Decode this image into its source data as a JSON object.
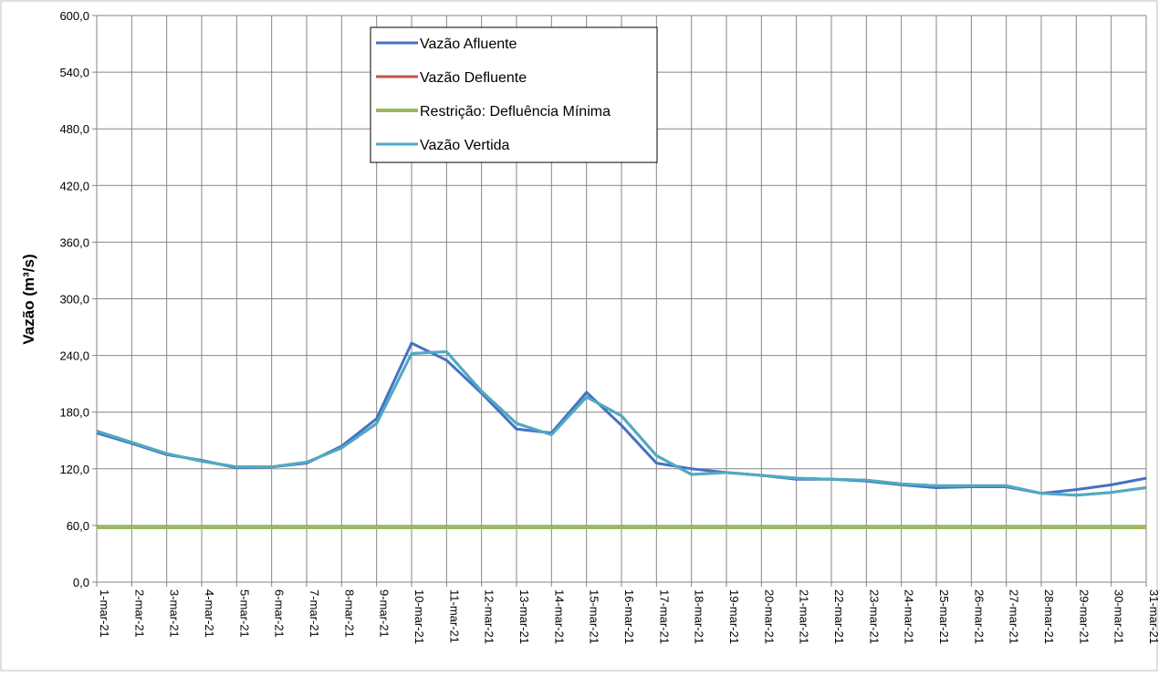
{
  "chart_data": {
    "type": "line",
    "ylabel": "Vazão (m³/s)",
    "ylim": [
      0,
      600
    ],
    "yticks": [
      "0,0",
      "60,0",
      "120,0",
      "180,0",
      "240,0",
      "300,0",
      "360,0",
      "420,0",
      "480,0",
      "540,0",
      "600,0"
    ],
    "categories": [
      "1-mar-21",
      "2-mar-21",
      "3-mar-21",
      "4-mar-21",
      "5-mar-21",
      "6-mar-21",
      "7-mar-21",
      "8-mar-21",
      "9-mar-21",
      "10-mar-21",
      "11-mar-21",
      "12-mar-21",
      "13-mar-21",
      "14-mar-21",
      "15-mar-21",
      "16-mar-21",
      "17-mar-21",
      "18-mar-21",
      "19-mar-21",
      "20-mar-21",
      "21-mar-21",
      "22-mar-21",
      "23-mar-21",
      "24-mar-21",
      "25-mar-21",
      "26-mar-21",
      "27-mar-21",
      "28-mar-21",
      "29-mar-21",
      "30-mar-21",
      "31-mar-21"
    ],
    "grid": true,
    "legend_position": "top-center",
    "series": [
      {
        "name": "Vazão Afluente",
        "color": "#4472c4",
        "values": [
          158,
          147,
          135,
          129,
          121,
          122,
          126,
          144,
          173,
          253,
          235,
          200,
          162,
          158,
          201,
          166,
          126,
          120,
          116,
          113,
          109,
          109,
          107,
          103,
          100,
          101,
          101,
          94,
          98,
          103,
          110
        ]
      },
      {
        "name": "Vazão Defluente",
        "color": "#c0504d",
        "values": [
          160,
          148,
          136,
          128,
          122,
          122,
          127,
          142,
          168,
          242,
          244,
          202,
          168,
          156,
          196,
          176,
          134,
          114,
          116,
          113,
          110,
          109,
          108,
          104,
          102,
          102,
          102,
          94,
          92,
          95,
          100
        ]
      },
      {
        "name": "Restrição: Defluência Mínima",
        "color": "#9bbb59",
        "values": [
          58,
          58,
          58,
          58,
          58,
          58,
          58,
          58,
          58,
          58,
          58,
          58,
          58,
          58,
          58,
          58,
          58,
          58,
          58,
          58,
          58,
          58,
          58,
          58,
          58,
          58,
          58,
          58,
          58,
          58,
          58
        ]
      },
      {
        "name": "Vazão Vertida",
        "color": "#4bacc6",
        "values": [
          160,
          148,
          136,
          128,
          122,
          122,
          127,
          142,
          168,
          242,
          244,
          202,
          168,
          156,
          196,
          176,
          134,
          114,
          116,
          113,
          110,
          109,
          108,
          104,
          102,
          102,
          102,
          94,
          92,
          95,
          100
        ]
      }
    ]
  }
}
